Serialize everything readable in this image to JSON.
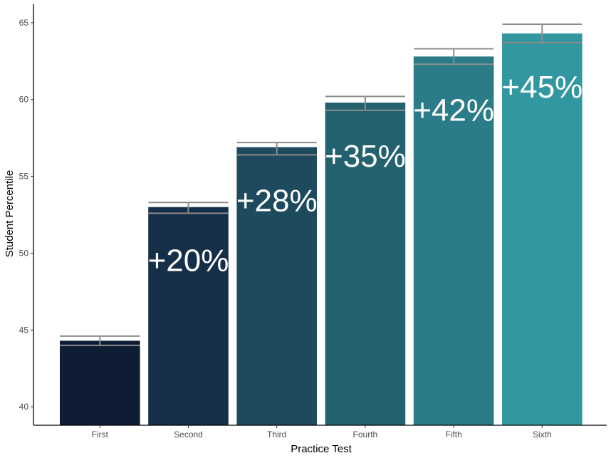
{
  "chart_data": {
    "type": "bar",
    "title": "",
    "xlabel": "Practice Test",
    "ylabel": "Student Percentile",
    "categories": [
      "First",
      "Second",
      "Third",
      "Fourth",
      "Fifth",
      "Sixth"
    ],
    "values": [
      44.3,
      53.0,
      56.9,
      59.8,
      62.8,
      64.3
    ],
    "error_low": [
      44.0,
      52.6,
      56.4,
      59.3,
      62.3,
      63.7
    ],
    "error_high": [
      44.6,
      53.3,
      57.2,
      60.2,
      63.3,
      64.9
    ],
    "data_labels": [
      "",
      "+20%",
      "+28%",
      "+35%",
      "+42%",
      "+45%"
    ],
    "yticks": [
      40,
      45,
      50,
      55,
      60,
      65
    ],
    "ylim": [
      38.8,
      66.2
    ],
    "grid": false,
    "legend": "none",
    "colors": [
      "#0e1c33",
      "#162f48",
      "#1d4a5c",
      "#23616f",
      "#2a7d88",
      "#3297a0"
    ],
    "error_bar_color": "#8c8c8c"
  }
}
